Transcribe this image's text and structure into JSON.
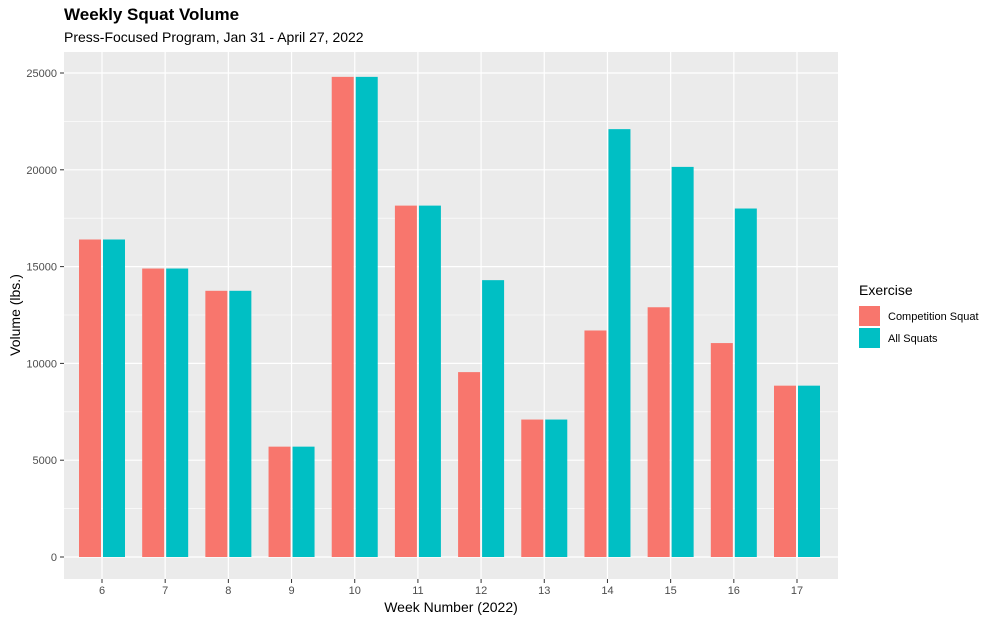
{
  "chart_data": {
    "type": "bar",
    "title": "Weekly Squat Volume",
    "subtitle": "Press-Focused Program, Jan 31 - April 27, 2022",
    "xlabel": "Week Number (2022)",
    "ylabel": "Volume (lbs.)",
    "categories": [
      "6",
      "7",
      "8",
      "9",
      "10",
      "11",
      "12",
      "13",
      "14",
      "15",
      "16",
      "17"
    ],
    "series": [
      {
        "name": "Competition Squat",
        "color": "#F8766D",
        "values": [
          16400,
          14900,
          13750,
          5700,
          24800,
          18150,
          9550,
          7100,
          11700,
          12900,
          11050,
          8850
        ]
      },
      {
        "name": "All Squats",
        "color": "#00BFC4",
        "values": [
          16400,
          14900,
          13750,
          5700,
          24800,
          18150,
          14300,
          7100,
          22100,
          20150,
          18000,
          8850
        ]
      }
    ],
    "ylim": [
      0,
      26250
    ],
    "yticks": [
      0,
      5000,
      10000,
      15000,
      20000,
      25000
    ],
    "ytick_labels": [
      "0",
      "5000",
      "10000",
      "15000",
      "20000",
      "25000"
    ],
    "grid": true,
    "legend": {
      "title": "Exercise",
      "position": "right"
    },
    "panel_background": "#EBEBEB",
    "grid_color": "#FFFFFF"
  }
}
